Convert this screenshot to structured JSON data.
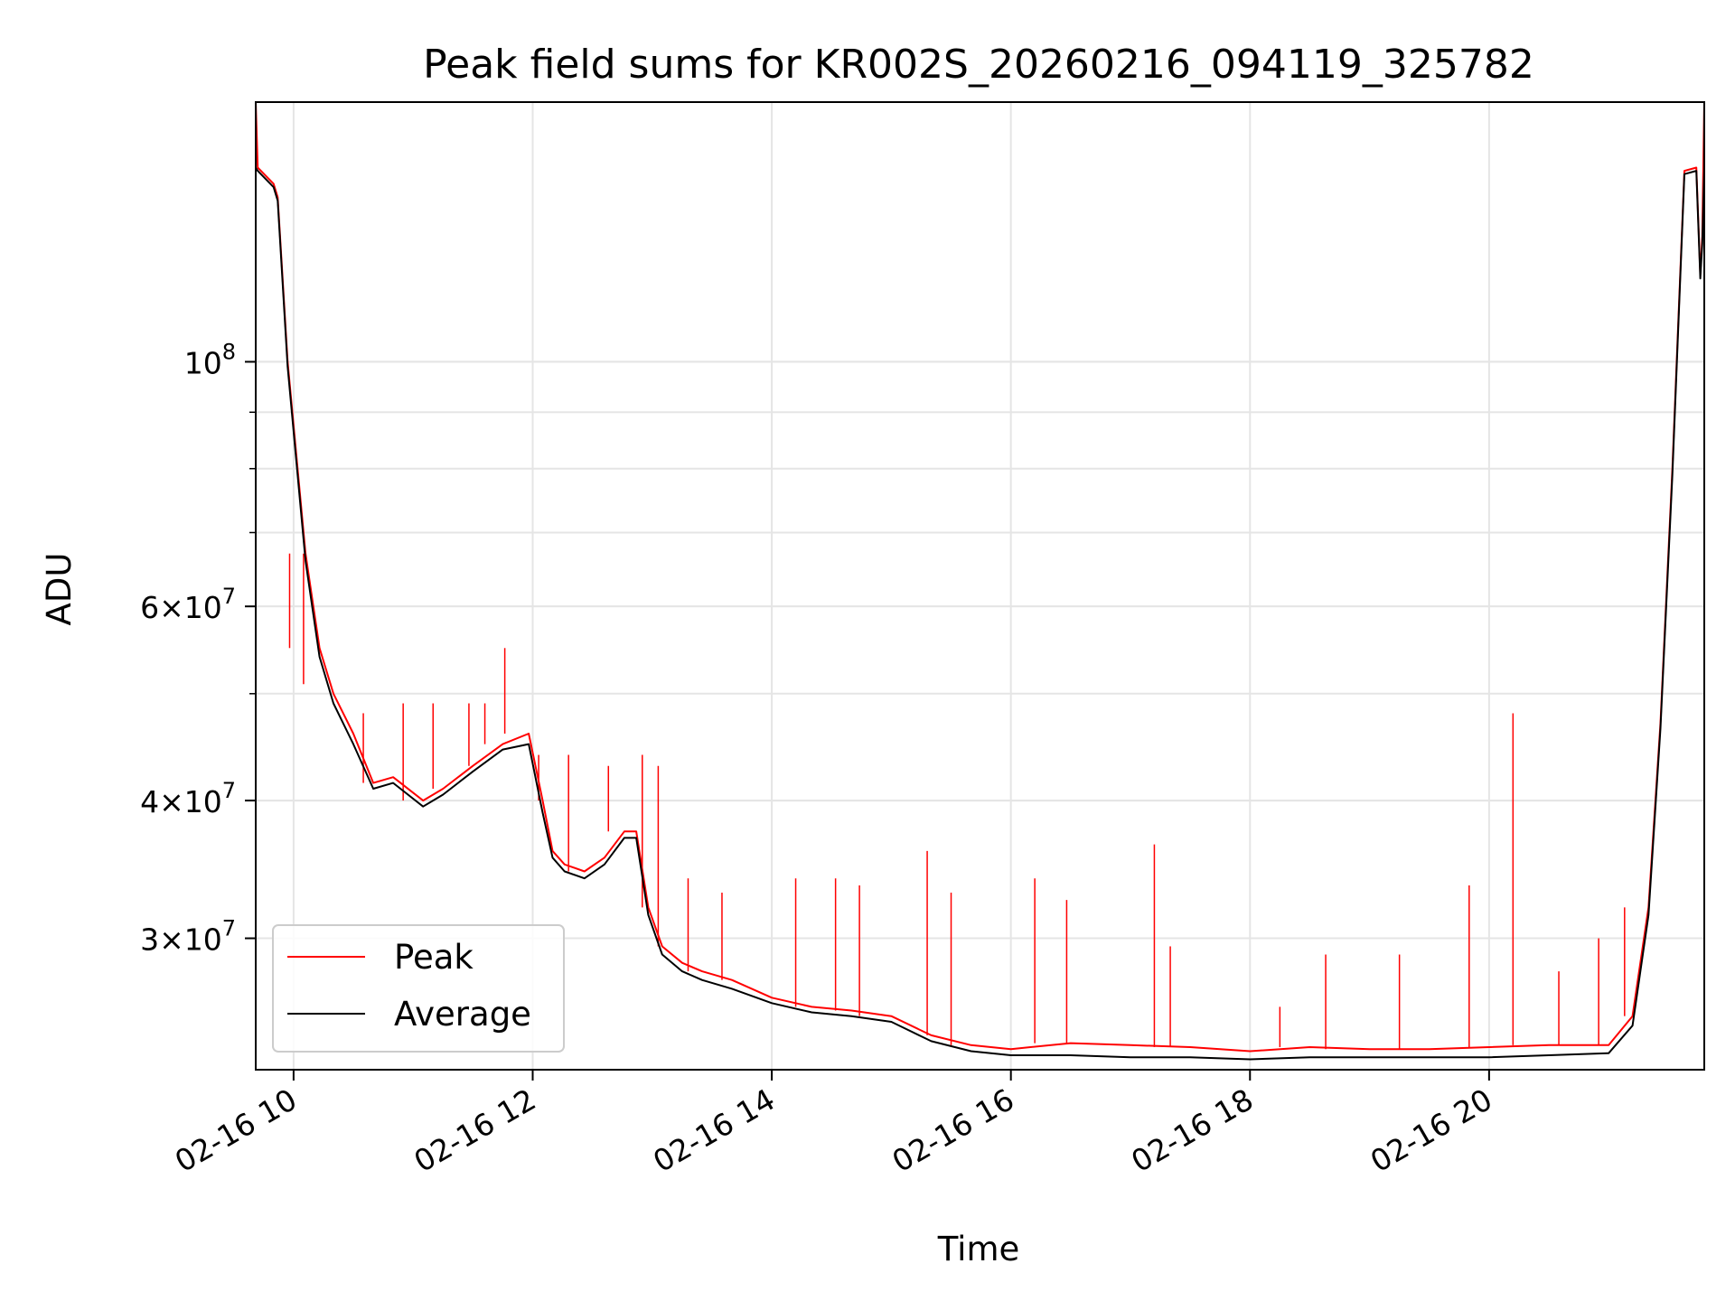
{
  "chart_data": {
    "type": "line",
    "title": "Peak field sums for KR002S_20260216_094119_325782",
    "xlabel": "Time",
    "ylabel": "ADU",
    "yscale": "log",
    "xlim": [
      "2026-02-16 09:41",
      "2026-02-16 21:48"
    ],
    "ylim": [
      22800000,
      172000000
    ],
    "grid": true,
    "legend": "lower-left",
    "x_ticks": [
      "02-16 10",
      "02-16 12",
      "02-16 14",
      "02-16 16",
      "02-16 18",
      "02-16 20"
    ],
    "y_ticks": [
      {
        "value": 100000000,
        "base": "10",
        "exp": "8",
        "coef": ""
      },
      {
        "value": 60000000,
        "base": "10",
        "exp": "7",
        "coef": "6"
      },
      {
        "value": 40000000,
        "base": "10",
        "exp": "7",
        "coef": "4"
      },
      {
        "value": 30000000,
        "base": "10",
        "exp": "7",
        "coef": "3"
      }
    ],
    "series": [
      {
        "name": "Peak",
        "color": "#ff0000",
        "x": [
          "2026-02-16 09:41",
          "2026-02-16 09:42",
          "2026-02-16 09:50",
          "2026-02-16 09:52",
          "2026-02-16 09:57",
          "2026-02-16 10:06",
          "2026-02-16 10:13",
          "2026-02-16 10:20",
          "2026-02-16 10:30",
          "2026-02-16 10:40",
          "2026-02-16 10:50",
          "2026-02-16 11:05",
          "2026-02-16 11:15",
          "2026-02-16 11:30",
          "2026-02-16 11:45",
          "2026-02-16 11:58",
          "2026-02-16 12:05",
          "2026-02-16 12:10",
          "2026-02-16 12:16",
          "2026-02-16 12:26",
          "2026-02-16 12:36",
          "2026-02-16 12:46",
          "2026-02-16 12:52",
          "2026-02-16 12:58",
          "2026-02-16 13:05",
          "2026-02-16 13:15",
          "2026-02-16 13:25",
          "2026-02-16 13:40",
          "2026-02-16 14:00",
          "2026-02-16 14:20",
          "2026-02-16 14:40",
          "2026-02-16 15:00",
          "2026-02-16 15:20",
          "2026-02-16 15:40",
          "2026-02-16 16:00",
          "2026-02-16 16:30",
          "2026-02-16 17:00",
          "2026-02-16 17:30",
          "2026-02-16 18:00",
          "2026-02-16 18:30",
          "2026-02-16 19:00",
          "2026-02-16 19:30",
          "2026-02-16 20:00",
          "2026-02-16 20:30",
          "2026-02-16 21:00",
          "2026-02-16 21:12",
          "2026-02-16 21:20",
          "2026-02-16 21:26",
          "2026-02-16 21:32",
          "2026-02-16 21:38",
          "2026-02-16 21:44",
          "2026-02-16 21:46",
          "2026-02-16 21:47",
          "2026-02-16 21:48"
        ],
        "y": [
          172000000,
          150000000,
          145000000,
          141000000,
          100000000,
          67000000,
          55000000,
          50000000,
          46000000,
          41500000,
          42000000,
          40000000,
          41000000,
          43000000,
          45000000,
          46000000,
          40000000,
          36000000,
          35000000,
          34500000,
          35500000,
          37500000,
          37500000,
          32000000,
          29500000,
          28500000,
          28000000,
          27500000,
          26500000,
          26000000,
          25800000,
          25500000,
          24500000,
          24000000,
          23800000,
          24100000,
          24000000,
          23900000,
          23700000,
          23900000,
          23800000,
          23800000,
          23900000,
          24000000,
          24000000,
          25500000,
          32000000,
          47000000,
          80000000,
          149000000,
          150000000,
          120000000,
          130000000,
          172000000
        ]
      },
      {
        "name": "Average",
        "color": "#000000",
        "x": [
          "2026-02-16 09:41",
          "2026-02-16 09:42",
          "2026-02-16 09:50",
          "2026-02-16 09:52",
          "2026-02-16 09:57",
          "2026-02-16 10:06",
          "2026-02-16 10:13",
          "2026-02-16 10:20",
          "2026-02-16 10:30",
          "2026-02-16 10:40",
          "2026-02-16 10:50",
          "2026-02-16 11:05",
          "2026-02-16 11:15",
          "2026-02-16 11:30",
          "2026-02-16 11:45",
          "2026-02-16 11:58",
          "2026-02-16 12:05",
          "2026-02-16 12:10",
          "2026-02-16 12:16",
          "2026-02-16 12:26",
          "2026-02-16 12:36",
          "2026-02-16 12:46",
          "2026-02-16 12:52",
          "2026-02-16 12:58",
          "2026-02-16 13:05",
          "2026-02-16 13:15",
          "2026-02-16 13:25",
          "2026-02-16 13:40",
          "2026-02-16 14:00",
          "2026-02-16 14:20",
          "2026-02-16 14:40",
          "2026-02-16 15:00",
          "2026-02-16 15:20",
          "2026-02-16 15:40",
          "2026-02-16 16:00",
          "2026-02-16 16:30",
          "2026-02-16 17:00",
          "2026-02-16 17:30",
          "2026-02-16 18:00",
          "2026-02-16 18:30",
          "2026-02-16 19:00",
          "2026-02-16 19:30",
          "2026-02-16 20:00",
          "2026-02-16 20:30",
          "2026-02-16 21:00",
          "2026-02-16 21:12",
          "2026-02-16 21:20",
          "2026-02-16 21:26",
          "2026-02-16 21:32",
          "2026-02-16 21:38",
          "2026-02-16 21:44",
          "2026-02-16 21:46",
          "2026-02-16 21:47",
          "2026-02-16 21:48"
        ],
        "y": [
          150000000,
          149000000,
          144000000,
          140000000,
          99000000,
          66000000,
          54000000,
          49000000,
          45000000,
          41000000,
          41500000,
          39500000,
          40500000,
          42500000,
          44500000,
          45000000,
          39000000,
          35500000,
          34500000,
          34000000,
          35000000,
          37000000,
          37000000,
          31500000,
          29000000,
          28000000,
          27500000,
          27000000,
          26200000,
          25700000,
          25500000,
          25200000,
          24200000,
          23700000,
          23500000,
          23500000,
          23400000,
          23400000,
          23300000,
          23400000,
          23400000,
          23400000,
          23400000,
          23500000,
          23600000,
          25000000,
          31500000,
          46500000,
          79000000,
          148000000,
          149000000,
          119000000,
          128000000,
          150000000
        ]
      }
    ],
    "peak_spikes": [
      {
        "x": "2026-02-16 09:58",
        "y": 55000000
      },
      {
        "x": "2026-02-16 10:05",
        "y": 51000000
      },
      {
        "x": "2026-02-16 10:20",
        "y": 50000000
      },
      {
        "x": "2026-02-16 10:35",
        "y": 48000000
      },
      {
        "x": "2026-02-16 10:55",
        "y": 49000000
      },
      {
        "x": "2026-02-16 11:10",
        "y": 49000000
      },
      {
        "x": "2026-02-16 11:28",
        "y": 49000000
      },
      {
        "x": "2026-02-16 11:36",
        "y": 49000000
      },
      {
        "x": "2026-02-16 11:46",
        "y": 55000000
      },
      {
        "x": "2026-02-16 12:03",
        "y": 44000000
      },
      {
        "x": "2026-02-16 12:18",
        "y": 44000000
      },
      {
        "x": "2026-02-16 12:38",
        "y": 43000000
      },
      {
        "x": "2026-02-16 12:55",
        "y": 44000000
      },
      {
        "x": "2026-02-16 13:03",
        "y": 43000000
      },
      {
        "x": "2026-02-16 13:18",
        "y": 34000000
      },
      {
        "x": "2026-02-16 13:35",
        "y": 33000000
      },
      {
        "x": "2026-02-16 14:12",
        "y": 34000000
      },
      {
        "x": "2026-02-16 14:32",
        "y": 34000000
      },
      {
        "x": "2026-02-16 14:44",
        "y": 33500000
      },
      {
        "x": "2026-02-16 15:18",
        "y": 36000000
      },
      {
        "x": "2026-02-16 15:30",
        "y": 33000000
      },
      {
        "x": "2026-02-16 16:12",
        "y": 34000000
      },
      {
        "x": "2026-02-16 16:28",
        "y": 32500000
      },
      {
        "x": "2026-02-16 17:12",
        "y": 36500000
      },
      {
        "x": "2026-02-16 17:20",
        "y": 29500000
      },
      {
        "x": "2026-02-16 18:15",
        "y": 26000000
      },
      {
        "x": "2026-02-16 18:38",
        "y": 29000000
      },
      {
        "x": "2026-02-16 19:15",
        "y": 29000000
      },
      {
        "x": "2026-02-16 19:50",
        "y": 33500000
      },
      {
        "x": "2026-02-16 20:12",
        "y": 48000000
      },
      {
        "x": "2026-02-16 20:35",
        "y": 28000000
      },
      {
        "x": "2026-02-16 20:55",
        "y": 30000000
      },
      {
        "x": "2026-02-16 21:08",
        "y": 32000000
      }
    ]
  }
}
